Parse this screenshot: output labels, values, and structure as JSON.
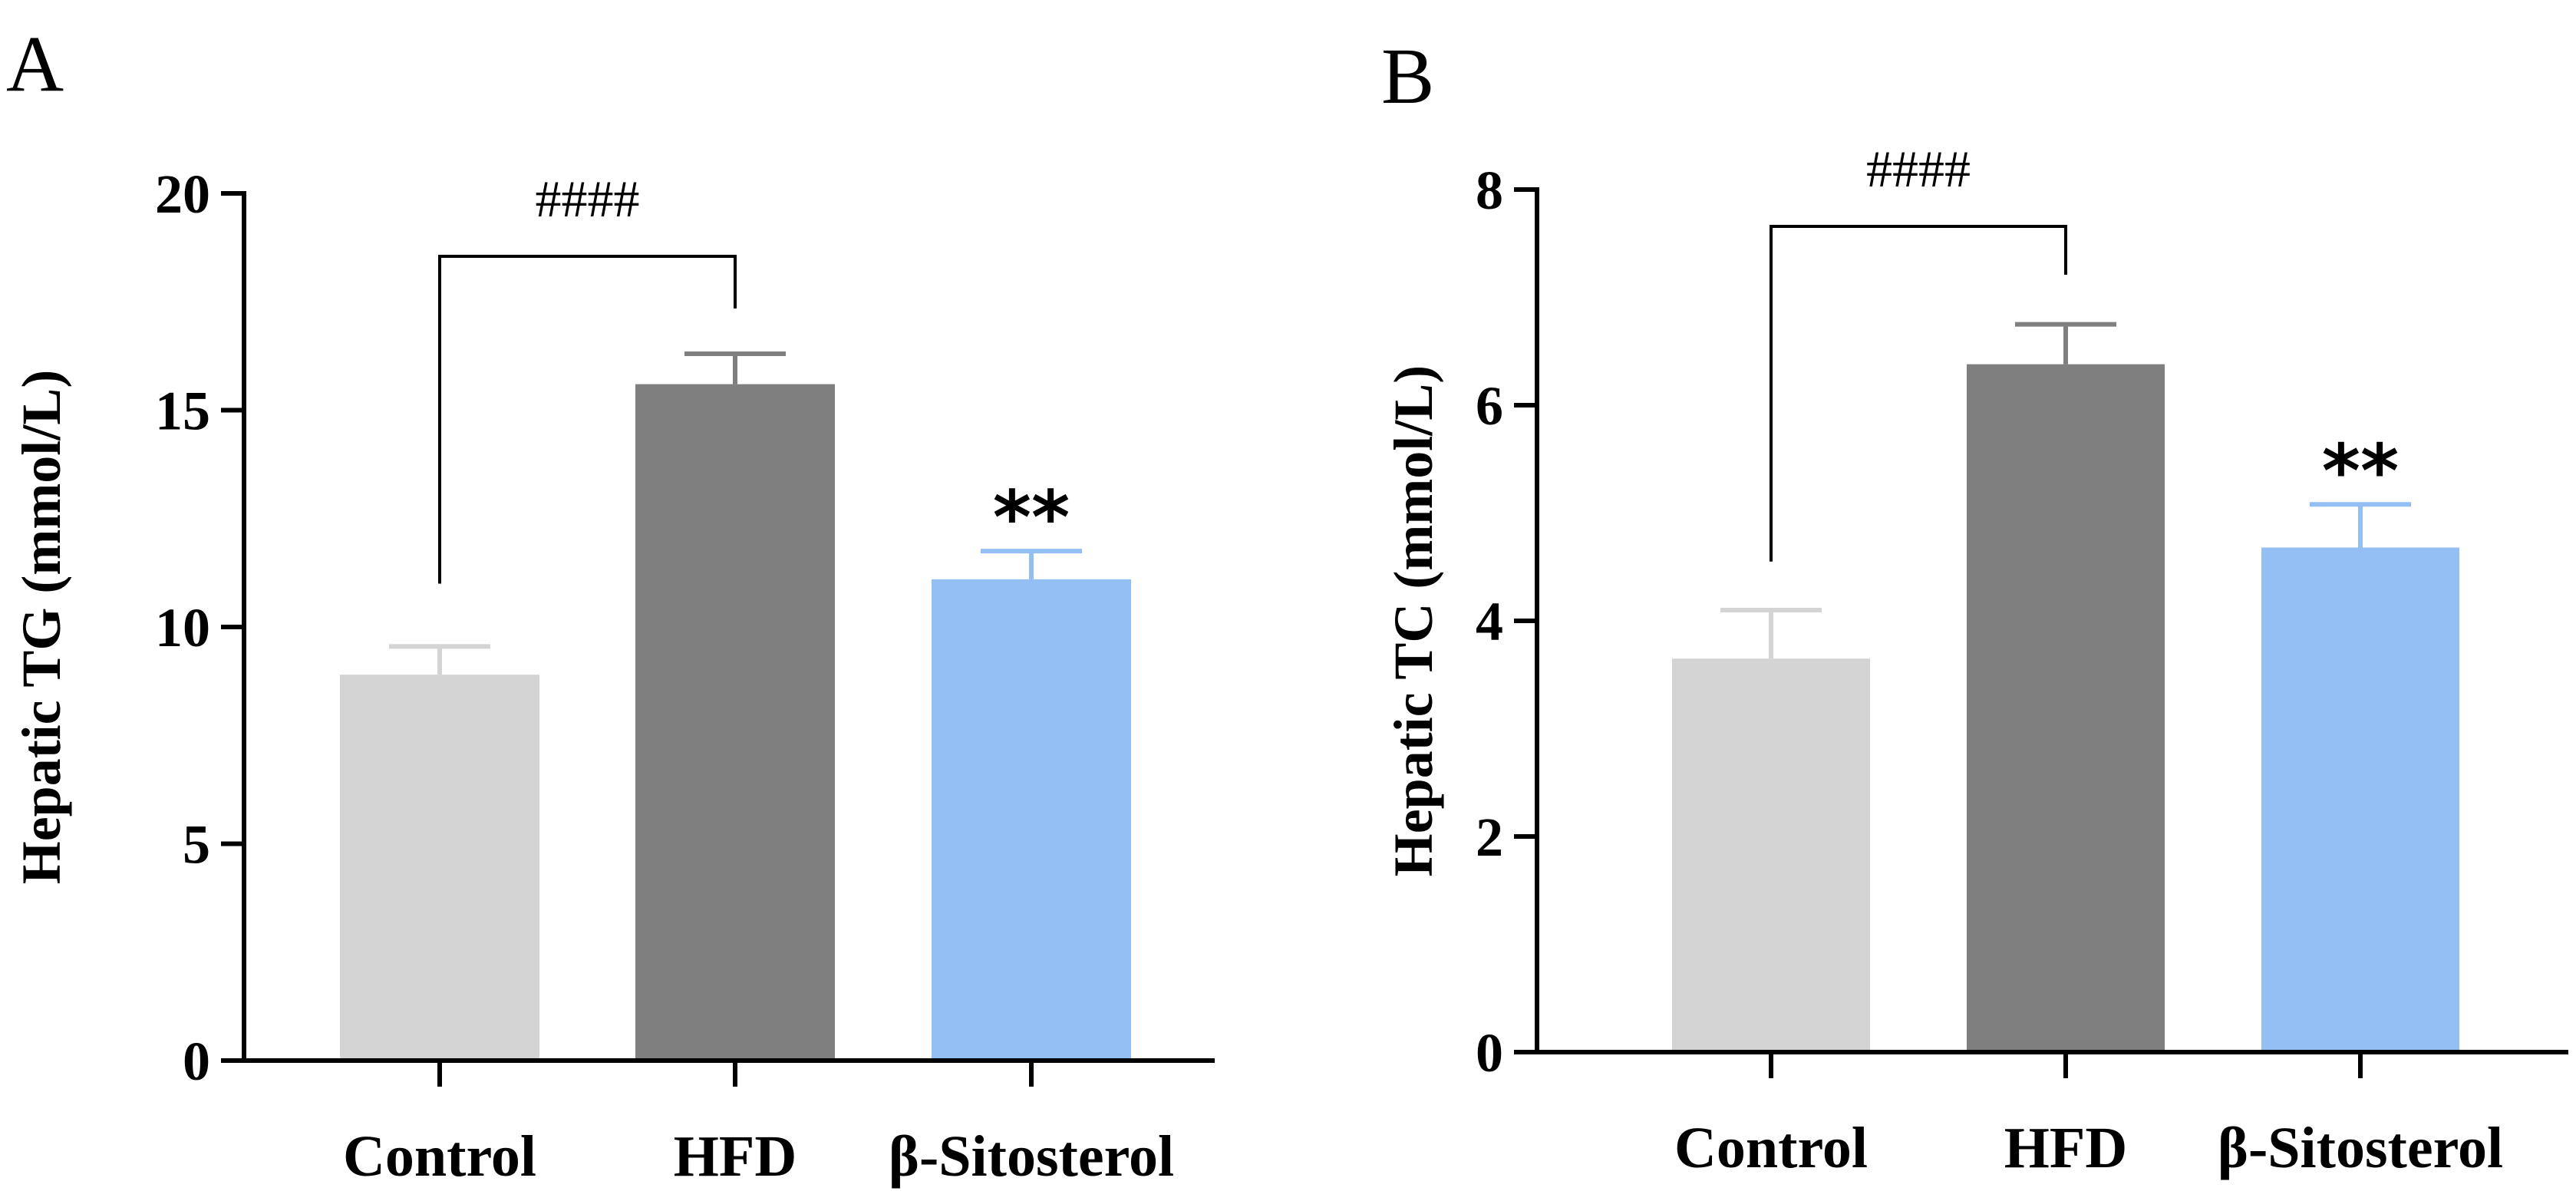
{
  "chart_data": [
    {
      "panel": "A",
      "type": "bar",
      "categories": [
        "Control",
        "HFD",
        "β-Sitosterol"
      ],
      "values": [
        8.9,
        15.6,
        11.1
      ],
      "errors": [
        0.65,
        0.7,
        0.65
      ],
      "colors": [
        "#d4d4d4",
        "#7f7f7f",
        "#93bff5"
      ],
      "ylabel": "Hepatic TG (mmol/L)",
      "ylim": [
        0,
        20
      ],
      "yticks": [
        "0",
        "5",
        "10",
        "15",
        "20"
      ],
      "bracket": {
        "from": 0,
        "to": 1,
        "label": "####"
      },
      "stars": {
        "index": 2,
        "label": "**"
      }
    },
    {
      "panel": "B",
      "type": "bar",
      "categories": [
        "Control",
        "HFD",
        "β-Sitosterol"
      ],
      "values": [
        3.65,
        6.38,
        4.68
      ],
      "errors": [
        0.45,
        0.37,
        0.4
      ],
      "colors": [
        "#d4d4d4",
        "#7f7f7f",
        "#93bff5"
      ],
      "ylabel": "Hepatic TC (mmol/L)",
      "ylim": [
        0,
        8
      ],
      "yticks": [
        "0",
        "2",
        "4",
        "6",
        "8"
      ],
      "bracket": {
        "from": 0,
        "to": 1,
        "label": "####"
      },
      "stars": {
        "index": 2,
        "label": "**"
      }
    }
  ]
}
